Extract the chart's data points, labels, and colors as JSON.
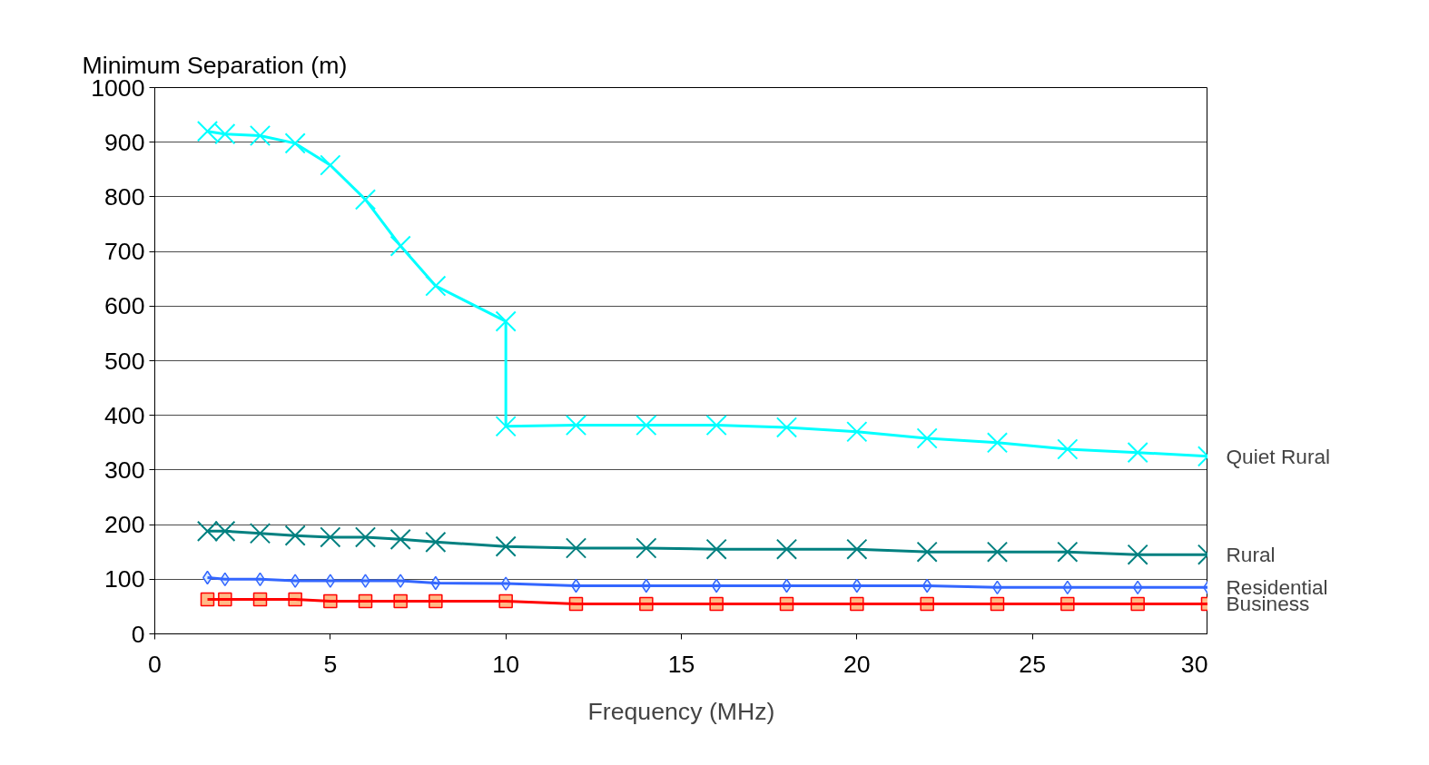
{
  "chart_data": {
    "type": "line",
    "ylabel": "Minimum Separation (m)",
    "xlabel": "Frequency (MHz)",
    "xlim": [
      0,
      30
    ],
    "xticks": [
      0,
      5,
      10,
      15,
      20,
      25,
      30
    ],
    "ylim": [
      0,
      1000
    ],
    "yticks": [
      0,
      100,
      200,
      300,
      400,
      500,
      600,
      700,
      800,
      900,
      1000
    ],
    "grid": "y",
    "legend": false,
    "series": [
      {
        "name": "Quiet Rural",
        "color": "#00ffff",
        "marker": "cross",
        "x": [
          1.5,
          2,
          3,
          4,
          5,
          6,
          7,
          8,
          10,
          10,
          12,
          14,
          16,
          18,
          20,
          22,
          24,
          26,
          28,
          30
        ],
        "values": [
          920,
          915,
          912,
          898,
          858,
          795,
          710,
          637,
          572,
          380,
          382,
          382,
          382,
          378,
          370,
          358,
          350,
          338,
          332,
          325
        ]
      },
      {
        "name": "Rural",
        "color": "#008080",
        "marker": "cross",
        "x": [
          1.5,
          2,
          3,
          4,
          5,
          6,
          7,
          8,
          10,
          12,
          14,
          16,
          18,
          20,
          22,
          24,
          26,
          28,
          30
        ],
        "values": [
          188,
          188,
          184,
          180,
          177,
          177,
          173,
          168,
          160,
          157,
          157,
          155,
          155,
          155,
          150,
          150,
          150,
          145,
          145
        ]
      },
      {
        "name": "Residential",
        "color": "#3366ff",
        "marker": "diamond",
        "x": [
          1.5,
          2,
          3,
          4,
          5,
          6,
          7,
          8,
          10,
          12,
          14,
          16,
          18,
          20,
          22,
          24,
          26,
          28,
          30
        ],
        "values": [
          103,
          100,
          100,
          97,
          97,
          97,
          97,
          93,
          92,
          88,
          88,
          88,
          88,
          88,
          88,
          85,
          85,
          85,
          85
        ]
      },
      {
        "name": "Business",
        "color": "#ff0000",
        "marker": "square",
        "x": [
          1.5,
          2,
          3,
          4,
          5,
          6,
          7,
          8,
          10,
          12,
          14,
          16,
          18,
          20,
          22,
          24,
          26,
          28,
          30
        ],
        "values": [
          63,
          63,
          63,
          63,
          60,
          60,
          60,
          60,
          60,
          55,
          55,
          55,
          55,
          55,
          55,
          55,
          55,
          55,
          55
        ]
      }
    ]
  }
}
